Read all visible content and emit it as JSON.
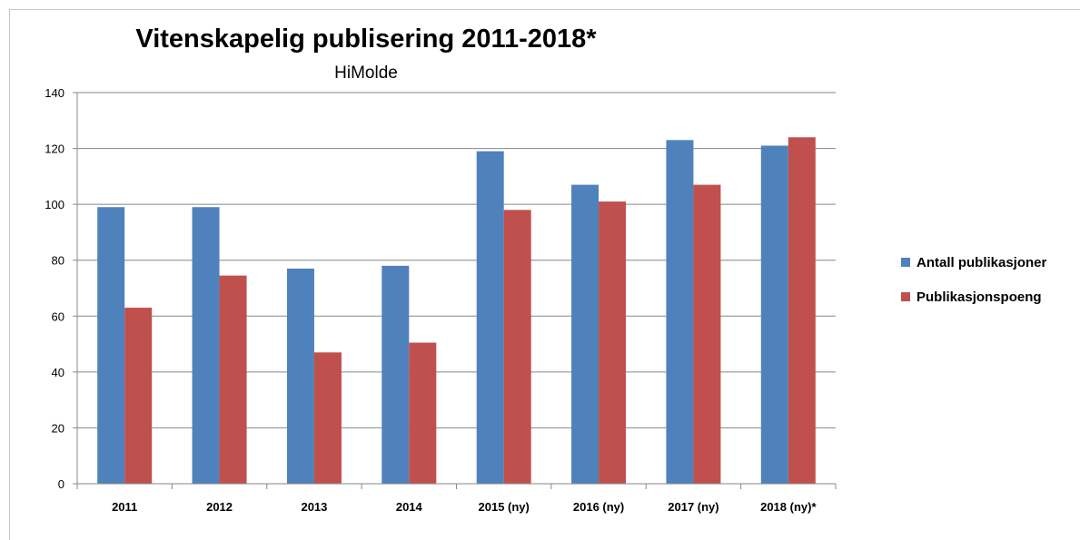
{
  "chart_data": {
    "type": "bar",
    "title": "Vitenskapelig publisering 2011-2018*",
    "subtitle": "HiMolde",
    "categories": [
      "2011",
      "2012",
      "2013",
      "2014",
      "2015 (ny)",
      "2016 (ny)",
      "2017 (ny)",
      "2018 (ny)*"
    ],
    "series": [
      {
        "name": "Antall publikasjoner",
        "color": "#4f81bd",
        "values": [
          99,
          99,
          77,
          78,
          119,
          107,
          123,
          121
        ]
      },
      {
        "name": "Publikasjonspoeng",
        "color": "#c0504d",
        "values": [
          63,
          74.5,
          47,
          50.5,
          98,
          101,
          107,
          124
        ]
      }
    ],
    "ylim": [
      0,
      140
    ],
    "yticks": [
      0,
      20,
      40,
      60,
      80,
      100,
      120,
      140
    ],
    "grid": true,
    "legend_position": "right"
  }
}
